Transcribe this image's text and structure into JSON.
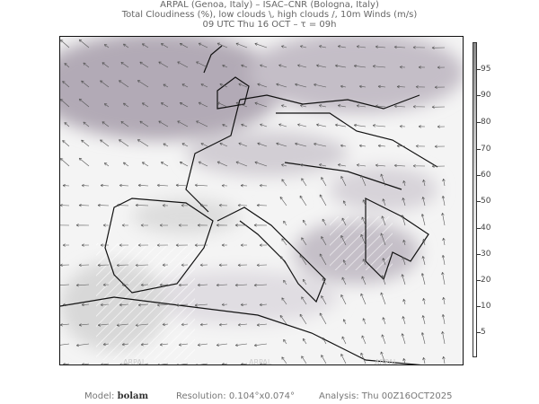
{
  "header": {
    "line1": "ARPAL (Genoa, Italy)  –  ISAC–CNR (Bologna, Italy)",
    "line2": "Total Cloudiness (%), low clouds \\, high clouds /, 10m Winds (m/s)",
    "line3": "09 UTC Thu 16 OCT  –  τ = 09h"
  },
  "colorbar": {
    "labels": [
      "95",
      "90",
      "80",
      "70",
      "60",
      "50",
      "40",
      "30",
      "20",
      "10",
      "5"
    ],
    "low_color": "#ffffff",
    "high_color": "#888888"
  },
  "map": {
    "watermark": "ARPAL",
    "coast_color": "#111111",
    "arrow_color": "#555555",
    "cloud_color": "#a9a0ad"
  },
  "footer": {
    "model_label": "Model:",
    "model_value": "bolam",
    "resolution_label": "Resolution:",
    "resolution_value": "0.104°x0.074°",
    "analysis_label": "Analysis:",
    "analysis_value": "Thu  00Z16OCT2025"
  }
}
